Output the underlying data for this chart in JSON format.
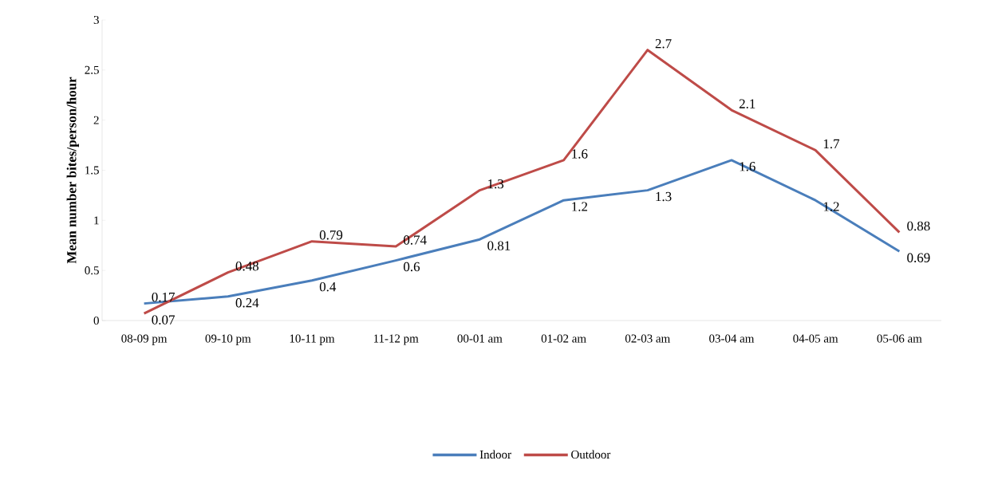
{
  "chart_data": {
    "type": "line",
    "ylabel": "Mean number bites/person/hour",
    "categories": [
      "08-09 pm",
      "09-10 pm",
      "10-11 pm",
      "11-12 pm",
      "00-01 am",
      "01-02 am",
      "02-03 am",
      "03-04 am",
      "04-05 am",
      "05-06 am"
    ],
    "series": [
      {
        "name": "Indoor",
        "color": "#4a7ebb",
        "values": [
          0.17,
          0.24,
          0.4,
          0.6,
          0.81,
          1.2,
          1.3,
          1.6,
          1.2,
          0.69
        ]
      },
      {
        "name": "Outdoor",
        "color": "#be4b48",
        "values": [
          0.07,
          0.48,
          0.79,
          0.74,
          1.3,
          1.6,
          2.7,
          2.1,
          1.7,
          0.88
        ]
      }
    ],
    "ylim": [
      0,
      3
    ],
    "yticks": [
      0,
      0.5,
      1,
      1.5,
      2,
      2.5,
      3
    ],
    "data_labels": true,
    "legend": "bottom",
    "grid": false,
    "marker": "none",
    "line_style": "solid"
  }
}
